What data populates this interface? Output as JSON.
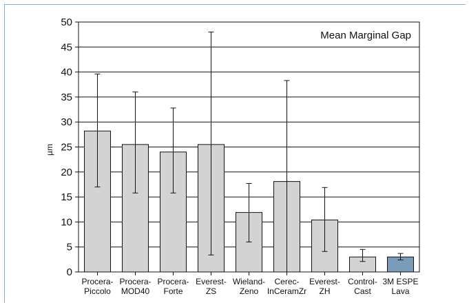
{
  "chart_data": {
    "type": "bar",
    "title": "Mean Marginal Gap",
    "ylabel": "µm",
    "xlabel": "",
    "ylim": [
      0,
      50
    ],
    "yticks": [
      0,
      5,
      10,
      15,
      20,
      25,
      30,
      35,
      40,
      45,
      50
    ],
    "grid": "horizontal",
    "legend": "none",
    "categories": [
      [
        "Procera-",
        "Piccolo"
      ],
      [
        "Procera-",
        "MOD40"
      ],
      [
        "Procera-",
        "Forte"
      ],
      [
        "Everest-",
        "ZS"
      ],
      [
        "Wieland-",
        "Zeno"
      ],
      [
        "Cerec-",
        "InCeramZr"
      ],
      [
        "Everest-",
        "ZH"
      ],
      [
        "Control-",
        "Cast"
      ],
      [
        "3M ESPE",
        "Lava"
      ]
    ],
    "values": [
      28.2,
      25.5,
      24.0,
      25.5,
      11.9,
      18.1,
      10.4,
      3.0,
      3.0
    ],
    "error_low": [
      17.0,
      15.8,
      15.8,
      3.4,
      6.0,
      0.0,
      4.1,
      2.1,
      2.4
    ],
    "error_high": [
      39.6,
      36.0,
      32.8,
      48.0,
      17.7,
      38.3,
      16.9,
      4.5,
      3.7
    ],
    "colors": {
      "default_bar": "#d3d3d3",
      "highlight_bar": "#7a9cb8",
      "highlight_index": 8,
      "frame_accent": "#7fb2d6"
    }
  }
}
